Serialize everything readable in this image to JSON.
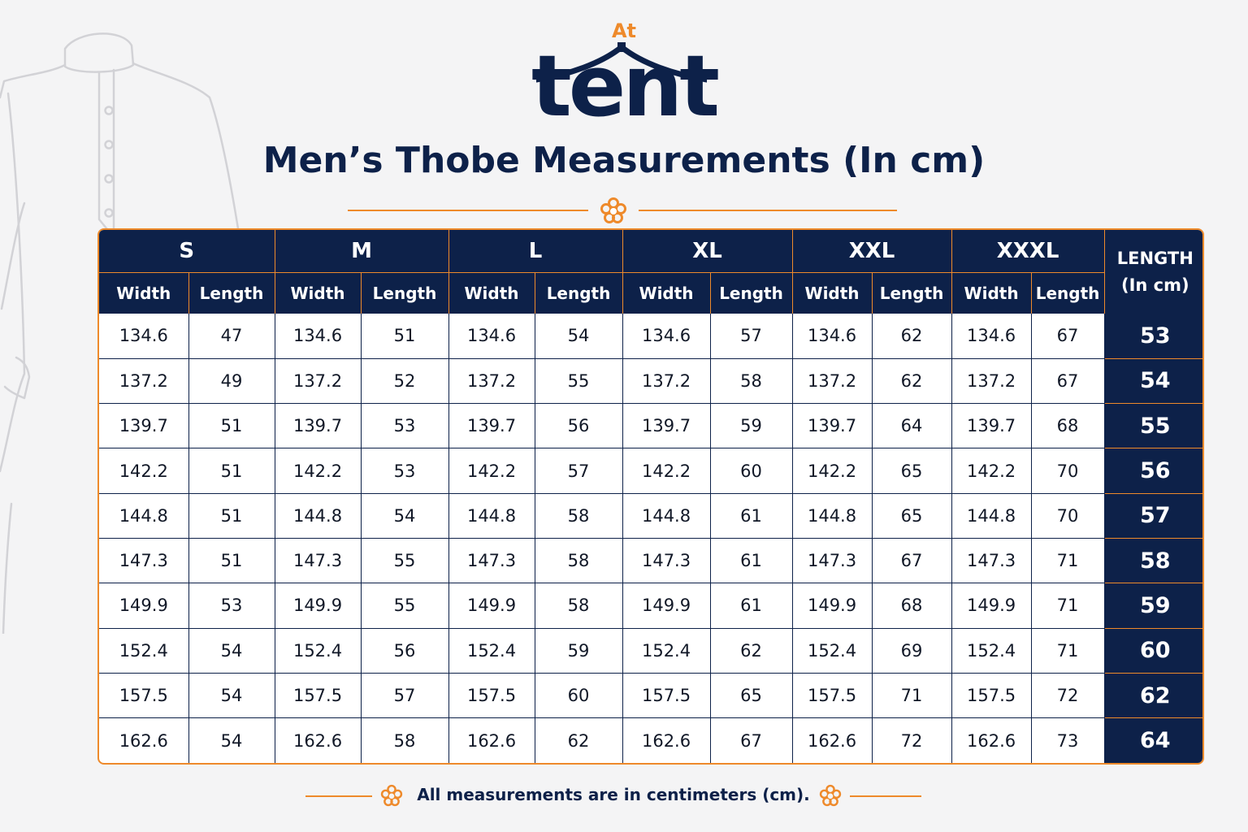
{
  "brand": {
    "prefix": "At",
    "name": "tent"
  },
  "title": "Men’s Thobe Measurements (In cm)",
  "colors": {
    "navy": "#0d2149",
    "orange": "#ee8a2b",
    "background": "#f4f4f5"
  },
  "icons": {
    "decoration": "flower-icon",
    "illustration": "thobe-outline-icon"
  },
  "table": {
    "sizes": [
      "S",
      "M",
      "L",
      "XL",
      "XXL",
      "XXXL"
    ],
    "sub_headers": {
      "width": "Width",
      "length": "Length"
    },
    "length_header": {
      "line1": "LENGTH",
      "line2": "(In cm)"
    },
    "rows": [
      {
        "width": "134.6",
        "lengths": [
          "47",
          "51",
          "54",
          "57",
          "62",
          "67"
        ],
        "overall": "53"
      },
      {
        "width": "137.2",
        "lengths": [
          "49",
          "52",
          "55",
          "58",
          "62",
          "67"
        ],
        "overall": "54"
      },
      {
        "width": "139.7",
        "lengths": [
          "51",
          "53",
          "56",
          "59",
          "64",
          "68"
        ],
        "overall": "55"
      },
      {
        "width": "142.2",
        "lengths": [
          "51",
          "53",
          "57",
          "60",
          "65",
          "70"
        ],
        "overall": "56"
      },
      {
        "width": "144.8",
        "lengths": [
          "51",
          "54",
          "58",
          "61",
          "65",
          "70"
        ],
        "overall": "57"
      },
      {
        "width": "147.3",
        "lengths": [
          "51",
          "55",
          "58",
          "61",
          "67",
          "71"
        ],
        "overall": "58"
      },
      {
        "width": "149.9",
        "lengths": [
          "53",
          "55",
          "58",
          "61",
          "68",
          "71"
        ],
        "overall": "59"
      },
      {
        "width": "152.4",
        "lengths": [
          "54",
          "56",
          "59",
          "62",
          "69",
          "71"
        ],
        "overall": "60"
      },
      {
        "width": "157.5",
        "lengths": [
          "54",
          "57",
          "60",
          "65",
          "71",
          "72"
        ],
        "overall": "62"
      },
      {
        "width": "162.6",
        "lengths": [
          "54",
          "58",
          "62",
          "67",
          "72",
          "73"
        ],
        "overall": "64"
      }
    ]
  },
  "footer": {
    "note": "All measurements are in centimeters (cm)."
  }
}
